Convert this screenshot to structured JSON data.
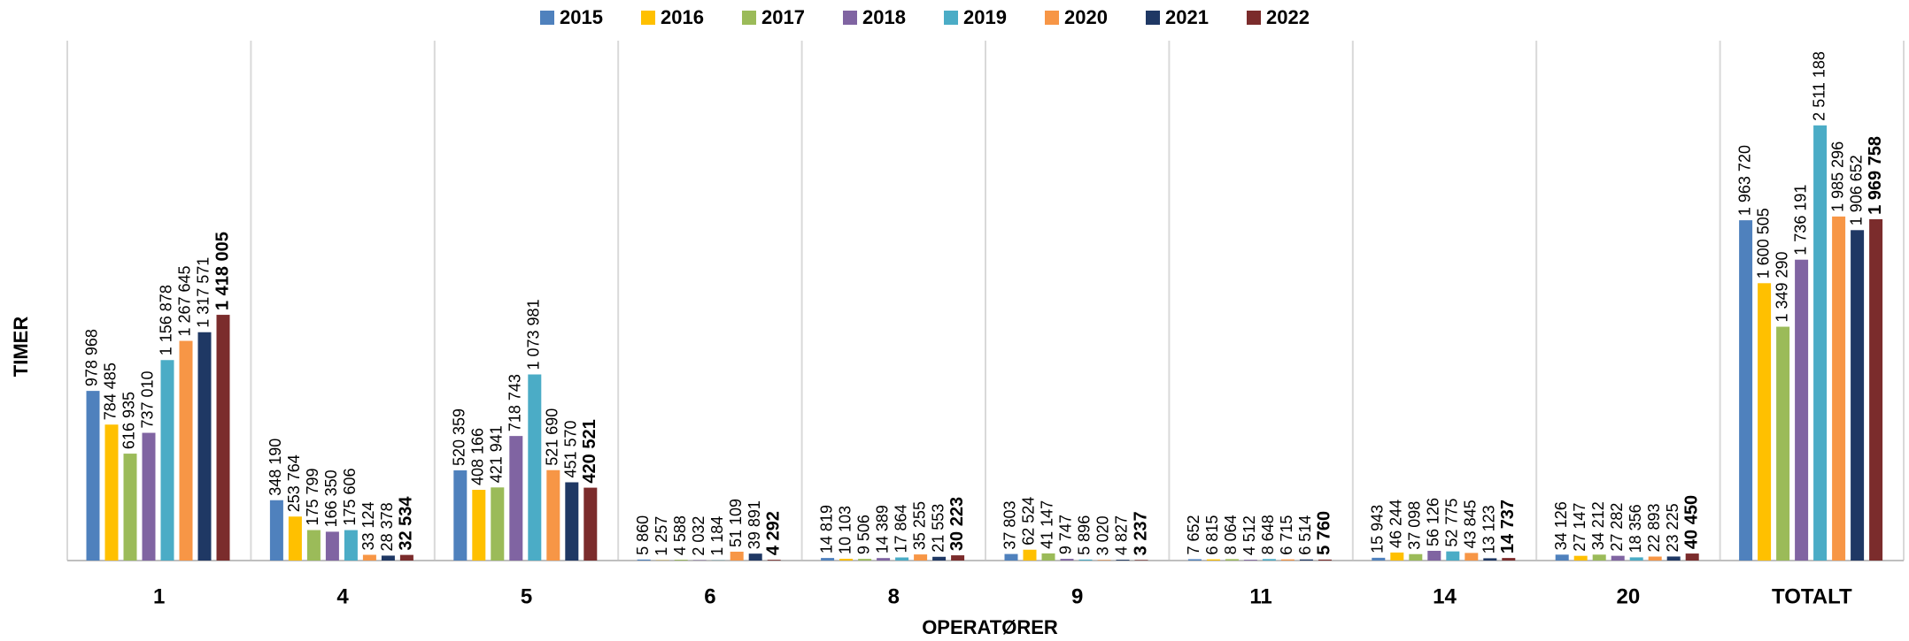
{
  "chart_data": {
    "type": "bar",
    "y_label": "TIMER",
    "x_label": "OPERATØRER",
    "categories": [
      "1",
      "4",
      "5",
      "6",
      "8",
      "9",
      "11",
      "14",
      "20",
      "TOTALT"
    ],
    "ylim": [
      0,
      3000000
    ],
    "legend": "top",
    "series": [
      {
        "name": "2015",
        "color": "#4f81bd",
        "values": [
          978968,
          348190,
          520359,
          5860,
          14819,
          37803,
          7652,
          15943,
          34126,
          1963720
        ],
        "value_labels": [
          "978 968",
          "348 190",
          "520 359",
          "5 860",
          "14 819",
          "37 803",
          "7 652",
          "15 943",
          "34 126",
          "1 963 720"
        ]
      },
      {
        "name": "2016",
        "color": "#ffc000",
        "values": [
          784485,
          253764,
          408166,
          1257,
          10103,
          62524,
          6815,
          46244,
          27147,
          1600505
        ],
        "value_labels": [
          "784 485",
          "253 764",
          "408 166",
          "1 257",
          "10 103",
          "62 524",
          "6 815",
          "46 244",
          "27 147",
          "1 600 505"
        ]
      },
      {
        "name": "2017",
        "color": "#9bbb59",
        "values": [
          616935,
          175799,
          421941,
          4588,
          9506,
          41147,
          8064,
          37098,
          34212,
          1349290
        ],
        "value_labels": [
          "616 935",
          "175 799",
          "421 941",
          "4 588",
          "9 506",
          "41 147",
          "8 064",
          "37 098",
          "34 212",
          "1 349 290"
        ]
      },
      {
        "name": "2018",
        "color": "#8064a2",
        "values": [
          737010,
          166350,
          718743,
          2032,
          14389,
          9747,
          4512,
          56126,
          27282,
          1736191
        ],
        "value_labels": [
          "737 010",
          "166 350",
          "718 743",
          "2 032",
          "14 389",
          "9 747",
          "4 512",
          "56 126",
          "27 282",
          "1 736 191"
        ]
      },
      {
        "name": "2019",
        "color": "#4bacc6",
        "values": [
          1156878,
          175606,
          1073981,
          1184,
          17864,
          5896,
          8648,
          52775,
          18356,
          2511188
        ],
        "value_labels": [
          "1 156 878",
          "175 606",
          "1 073 981",
          "1 184",
          "17 864",
          "5 896",
          "8 648",
          "52 775",
          "18 356",
          "2 511 188"
        ]
      },
      {
        "name": "2020",
        "color": "#f79646",
        "values": [
          1267645,
          33124,
          521690,
          51109,
          35255,
          3020,
          6715,
          43845,
          22893,
          1985296
        ],
        "value_labels": [
          "1 267 645",
          "33 124",
          "521 690",
          "51 109",
          "35 255",
          "3 020",
          "6 715",
          "43 845",
          "22 893",
          "1 985 296"
        ]
      },
      {
        "name": "2021",
        "color": "#1f3864",
        "values": [
          1317571,
          28378,
          451570,
          39891,
          21553,
          4827,
          6514,
          13123,
          23225,
          1906652
        ],
        "value_labels": [
          "1 317 571",
          "28 378",
          "451 570",
          "39 891",
          "21 553",
          "4 827",
          "6 514",
          "13 123",
          "23 225",
          "1 906 652"
        ]
      },
      {
        "name": "2022",
        "color": "#7b2c2c",
        "values": [
          1418005,
          32534,
          420521,
          4292,
          30223,
          3237,
          5760,
          14737,
          40450,
          1969758
        ],
        "value_labels": [
          "1 418 005",
          "32 534",
          "420 521",
          "4 292",
          "30 223",
          "3 237",
          "5 760",
          "14 737",
          "40 450",
          "1 969 758"
        ]
      }
    ]
  }
}
